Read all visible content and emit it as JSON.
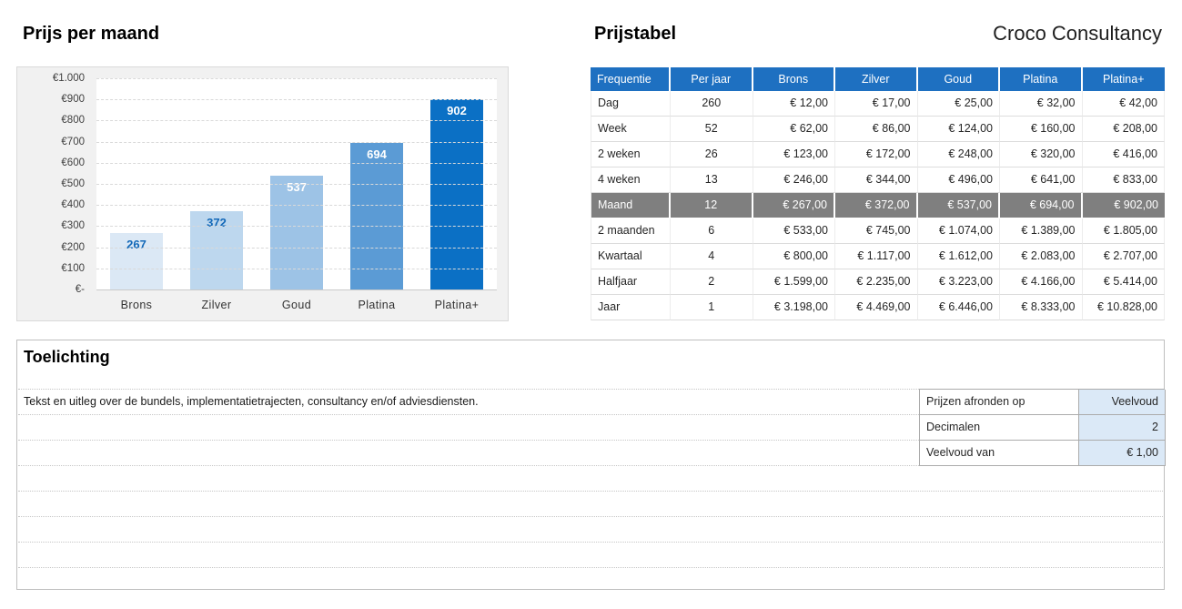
{
  "titles": {
    "chart_section": "Prijs per maand",
    "table_section": "Prijstabel",
    "brand": "Croco Consultancy"
  },
  "chart_data": {
    "type": "bar",
    "title": "Prijs per maand",
    "categories": [
      "Brons",
      "Zilver",
      "Goud",
      "Platina",
      "Platina+"
    ],
    "values": [
      267,
      372,
      537,
      694,
      902
    ],
    "value_labels": [
      "267",
      "372",
      "537",
      "694",
      "902"
    ],
    "y_ticks": [
      "€1.000",
      "€900",
      "€800",
      "€700",
      "€600",
      "€500",
      "€400",
      "€300",
      "€200",
      "€100",
      "€-"
    ],
    "ylim": [
      0,
      1000
    ],
    "grid": "horizontal-dashed",
    "legend": "none",
    "bar_colors": [
      "#dbe8f5",
      "#bdd7ee",
      "#9dc3e6",
      "#5b9bd5",
      "#0b70c5"
    ],
    "label_colors": [
      "#1268b8",
      "#1268b8",
      "#ffffff",
      "#ffffff",
      "#ffffff"
    ]
  },
  "price_table": {
    "headers": [
      "Frequentie",
      "Per jaar",
      "Brons",
      "Zilver",
      "Goud",
      "Platina",
      "Platina+"
    ],
    "rows": [
      {
        "cells": [
          "Dag",
          "260",
          "€ 12,00",
          "€ 17,00",
          "€ 25,00",
          "€ 32,00",
          "€ 42,00"
        ],
        "highlight": false
      },
      {
        "cells": [
          "Week",
          "52",
          "€ 62,00",
          "€ 86,00",
          "€ 124,00",
          "€ 160,00",
          "€ 208,00"
        ],
        "highlight": false
      },
      {
        "cells": [
          "2 weken",
          "26",
          "€ 123,00",
          "€ 172,00",
          "€ 248,00",
          "€ 320,00",
          "€ 416,00"
        ],
        "highlight": false
      },
      {
        "cells": [
          "4 weken",
          "13",
          "€ 246,00",
          "€ 344,00",
          "€ 496,00",
          "€ 641,00",
          "€ 833,00"
        ],
        "highlight": false
      },
      {
        "cells": [
          "Maand",
          "12",
          "€ 267,00",
          "€ 372,00",
          "€ 537,00",
          "€ 694,00",
          "€ 902,00"
        ],
        "highlight": true
      },
      {
        "cells": [
          "2 maanden",
          "6",
          "€ 533,00",
          "€ 745,00",
          "€ 1.074,00",
          "€ 1.389,00",
          "€ 1.805,00"
        ],
        "highlight": false
      },
      {
        "cells": [
          "Kwartaal",
          "4",
          "€ 800,00",
          "€ 1.117,00",
          "€ 1.612,00",
          "€ 2.083,00",
          "€ 2.707,00"
        ],
        "highlight": false
      },
      {
        "cells": [
          "Halfjaar",
          "2",
          "€ 1.599,00",
          "€ 2.235,00",
          "€ 3.223,00",
          "€ 4.166,00",
          "€ 5.414,00"
        ],
        "highlight": false
      },
      {
        "cells": [
          "Jaar",
          "1",
          "€ 3.198,00",
          "€ 4.469,00",
          "€ 6.446,00",
          "€ 8.333,00",
          "€ 10.828,00"
        ],
        "highlight": false
      }
    ]
  },
  "toelichting": {
    "title": "Toelichting",
    "text": "Tekst en uitleg over de bundels, implementatietrajecten, consultancy en/of adviesdiensten.",
    "settings": [
      {
        "label": "Prijzen afronden op",
        "value": "Veelvoud"
      },
      {
        "label": "Decimalen",
        "value": "2"
      },
      {
        "label": "Veelvoud van",
        "value": "€ 1,00"
      }
    ]
  },
  "colors": {
    "header_blue": "#1e70c1",
    "highlight_gray": "#7f7f7f",
    "value_cell_blue": "#dbe9f7",
    "accent_blue": "#0b70c5",
    "chart_background": "#f1f1f1"
  }
}
